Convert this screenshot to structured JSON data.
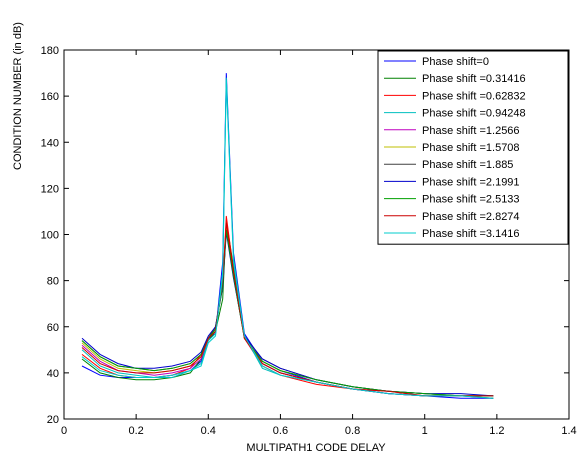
{
  "chart_data": {
    "type": "line",
    "xlabel": "MULTIPATH1 CODE DELAY",
    "ylabel": "CONDITION NUMBER (in dB)",
    "xlim": [
      0,
      1.4
    ],
    "ylim": [
      20,
      180
    ],
    "xticks": [
      0,
      0.2,
      0.4,
      0.6,
      0.8,
      1,
      1.2,
      1.4
    ],
    "yticks": [
      20,
      40,
      60,
      80,
      100,
      120,
      140,
      160,
      180
    ],
    "grid": false,
    "legend_position": "top-right",
    "x": [
      0.05,
      0.1,
      0.15,
      0.2,
      0.25,
      0.3,
      0.35,
      0.38,
      0.4,
      0.42,
      0.44,
      0.45,
      0.47,
      0.5,
      0.55,
      0.6,
      0.7,
      0.8,
      0.9,
      1.0,
      1.1,
      1.19
    ],
    "series": [
      {
        "name": "Phase shift=0",
        "color": "#0000ff",
        "values": [
          43,
          39,
          38,
          38,
          38,
          39,
          41,
          45,
          55,
          57,
          88,
          170,
          92,
          57,
          45,
          41,
          36,
          33,
          31,
          30,
          29,
          29
        ]
      },
      {
        "name": "Phase shift =0.31416",
        "color": "#008000",
        "values": [
          46,
          40,
          38,
          37,
          37,
          38,
          40,
          46,
          54,
          58,
          72,
          106,
          86,
          56,
          44,
          40,
          36,
          33,
          31,
          30,
          30,
          29
        ]
      },
      {
        "name": "Phase shift =0.62832",
        "color": "#ff0000",
        "values": [
          48,
          42,
          39,
          38,
          38,
          39,
          42,
          48,
          55,
          60,
          78,
          108,
          84,
          55,
          43,
          39,
          35,
          33,
          32,
          30,
          30,
          30
        ]
      },
      {
        "name": "Phase shift =0.94248",
        "color": "#00bfbf",
        "values": [
          50,
          43,
          40,
          39,
          38,
          38,
          41,
          44,
          54,
          57,
          84,
          168,
          90,
          56,
          42,
          39,
          36,
          33,
          31,
          30,
          30,
          30
        ]
      },
      {
        "name": "Phase shift =1.2566",
        "color": "#bf00bf",
        "values": [
          52,
          45,
          41,
          40,
          39,
          40,
          42,
          46,
          55,
          58,
          80,
          104,
          82,
          55,
          44,
          40,
          36,
          33,
          31,
          30,
          30,
          30
        ]
      },
      {
        "name": "Phase shift =1.5708",
        "color": "#bfbf00",
        "values": [
          53,
          46,
          42,
          41,
          40,
          41,
          43,
          47,
          55,
          59,
          79,
          103,
          83,
          55,
          45,
          41,
          37,
          34,
          32,
          31,
          30,
          30
        ]
      },
      {
        "name": "Phase shift =1.885",
        "color": "#404040",
        "values": [
          54,
          47,
          43,
          42,
          41,
          42,
          44,
          48,
          55,
          60,
          78,
          102,
          82,
          56,
          46,
          42,
          37,
          34,
          32,
          31,
          30,
          30
        ]
      },
      {
        "name": "Phase shift =2.1991",
        "color": "#0000cc",
        "values": [
          55,
          48,
          44,
          42,
          42,
          43,
          45,
          49,
          56,
          60,
          77,
          101,
          81,
          56,
          46,
          42,
          37,
          34,
          32,
          31,
          31,
          30
        ]
      },
      {
        "name": "Phase shift =2.5133",
        "color": "#00a000",
        "values": [
          54,
          47,
          43,
          42,
          41,
          42,
          44,
          48,
          55,
          59,
          78,
          102,
          82,
          55,
          45,
          41,
          37,
          34,
          32,
          31,
          30,
          30
        ]
      },
      {
        "name": "Phase shift =2.8274",
        "color": "#cc0000",
        "values": [
          51,
          44,
          41,
          40,
          40,
          41,
          43,
          47,
          55,
          58,
          80,
          105,
          84,
          55,
          44,
          40,
          36,
          33,
          32,
          30,
          30,
          30
        ]
      },
      {
        "name": "Phase shift =3.1416",
        "color": "#00cccc",
        "values": [
          47,
          41,
          39,
          38,
          38,
          39,
          41,
          43,
          53,
          56,
          82,
          167,
          88,
          56,
          43,
          39,
          36,
          33,
          31,
          30,
          30,
          29
        ]
      }
    ]
  }
}
